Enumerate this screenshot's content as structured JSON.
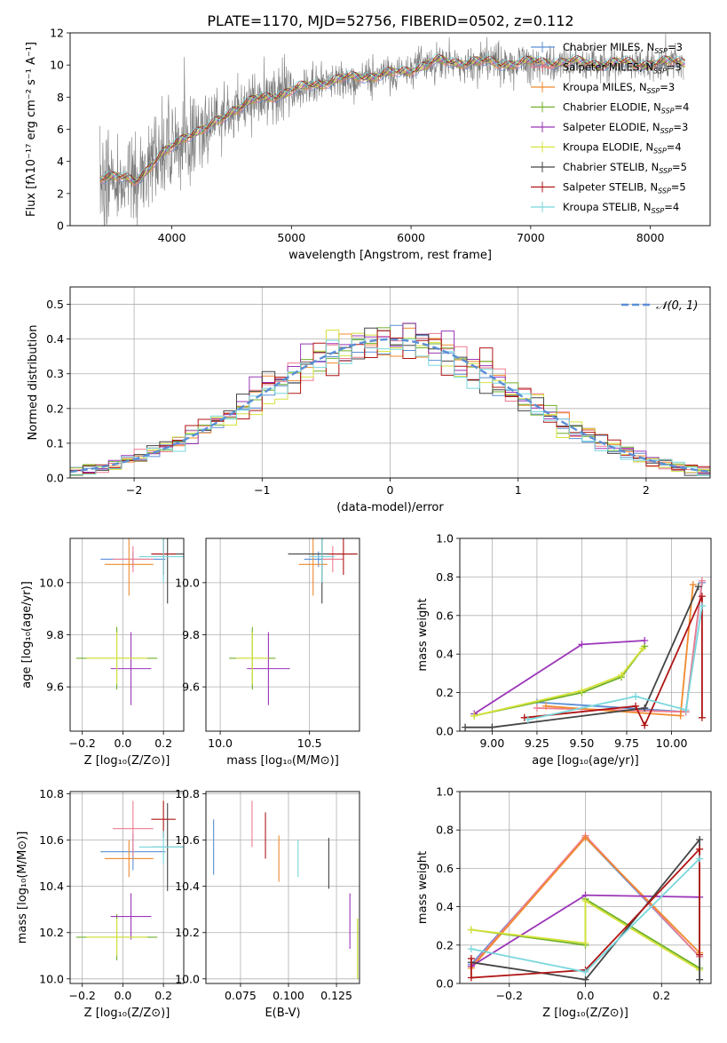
{
  "figure_title": "PLATE=1170, MJD=52756, FIBERID=0502, z=0.112",
  "legend": {
    "spectrum_models": [
      {
        "label": "Chabrier MILES, N",
        "sub": "SSP",
        "tail": "=3",
        "color": "#5b8fd6"
      },
      {
        "label": "Salpeter MILES, N",
        "sub": "SSP",
        "tail": "=3",
        "color": "#ee7b8f"
      },
      {
        "label": "Kroupa MILES, N",
        "sub": "SSP",
        "tail": "=3",
        "color": "#f08a2e"
      },
      {
        "label": "Chabrier ELODIE, N",
        "sub": "SSP",
        "tail": "=4",
        "color": "#6fb02a"
      },
      {
        "label": "Salpeter ELODIE, N",
        "sub": "SSP",
        "tail": "=3",
        "color": "#9b35b8"
      },
      {
        "label": "Kroupa ELODIE, N",
        "sub": "SSP",
        "tail": "=4",
        "color": "#d6e23a"
      },
      {
        "label": "Chabrier STELIB, N",
        "sub": "SSP",
        "tail": "=5",
        "color": "#444444"
      },
      {
        "label": "Salpeter STELIB, N",
        "sub": "SSP",
        "tail": "=5",
        "color": "#b01515"
      },
      {
        "label": "Kroupa STELIB, N",
        "sub": "SSP",
        "tail": "=4",
        "color": "#78d7dc"
      }
    ],
    "gaussian": "𝒩(0, 1)"
  },
  "chart_data": [
    {
      "id": "spectrum",
      "type": "line",
      "xlabel": "wavelength [Angstrom, rest frame]",
      "ylabel": "Flux [fλ10⁻¹⁷ erg cm⁻² s⁻¹ A⁻¹]",
      "xlim": [
        3150,
        8500
      ],
      "ylim": [
        0,
        12
      ],
      "xticks": [
        4000,
        5000,
        6000,
        7000,
        8000
      ],
      "yticks": [
        0,
        2,
        4,
        6,
        8,
        10,
        12
      ],
      "model_x_range": [
        3400,
        8290
      ],
      "data_x_range": [
        3400,
        8280
      ],
      "continuum_anchors": [
        [
          3400,
          3.0
        ],
        [
          3700,
          2.9
        ],
        [
          3900,
          4.2
        ],
        [
          4100,
          5.6
        ],
        [
          4300,
          6.0
        ],
        [
          4500,
          7.2
        ],
        [
          4700,
          7.8
        ],
        [
          5000,
          8.4
        ],
        [
          5300,
          9.0
        ],
        [
          5600,
          9.3
        ],
        [
          5900,
          9.5
        ],
        [
          6200,
          10.2
        ],
        [
          6500,
          10.2
        ],
        [
          6800,
          10.1
        ],
        [
          7200,
          10.2
        ],
        [
          7600,
          10.1
        ],
        [
          8000,
          10.1
        ],
        [
          8280,
          10.2
        ]
      ]
    },
    {
      "id": "residuals",
      "type": "step",
      "xlabel": "(data-model)/error",
      "ylabel": "Normed distribution",
      "xlim": [
        -2.5,
        2.5
      ],
      "ylim": [
        0,
        0.55
      ],
      "xticks": [
        -2,
        -1,
        0,
        1,
        2
      ],
      "xtick_labels": [
        "−2",
        "−1",
        "0",
        "1",
        "2"
      ],
      "yticks": [
        0.0,
        0.1,
        0.2,
        0.3,
        0.4,
        0.5
      ],
      "ytick_labels": [
        "0.0",
        "0.1",
        "0.2",
        "0.3",
        "0.4",
        "0.5"
      ],
      "bin_width": 0.1,
      "bins_from": -2.5
    },
    {
      "id": "age_vs_Z",
      "type": "errorbar",
      "xlabel": "Z [log₁₀(Z/Z⊙)]",
      "ylabel": "age [log₁₀(age/yr)]",
      "xlim": [
        -0.26,
        0.3
      ],
      "ylim": [
        9.43,
        10.17
      ],
      "xticks": [
        -0.2,
        0.0,
        0.2
      ],
      "xtick_labels": [
        "−0.2",
        "0.0",
        "0.2"
      ],
      "yticks": [
        9.6,
        9.8,
        10.0
      ],
      "ytick_labels": [
        "9.6",
        "9.8",
        "10.0"
      ],
      "points": [
        {
          "model": 0,
          "x": 0.05,
          "y": 10.09,
          "xerr": 0.16,
          "yerr": 0.03
        },
        {
          "model": 1,
          "x": 0.05,
          "y": 10.09,
          "xerr": 0.1,
          "yerr": 0.05
        },
        {
          "model": 2,
          "x": 0.03,
          "y": 10.07,
          "xerr": 0.12,
          "yerr": 0.12
        },
        {
          "model": 3,
          "x": -0.03,
          "y": 9.71,
          "xerr": 0.2,
          "yerr": 0.12
        },
        {
          "model": 4,
          "x": 0.04,
          "y": 9.67,
          "xerr": 0.1,
          "yerr": 0.14
        },
        {
          "model": 5,
          "x": -0.03,
          "y": 9.71,
          "xerr": 0.15,
          "yerr": 0.1
        },
        {
          "model": 6,
          "x": 0.22,
          "y": 10.11,
          "xerr": 0.08,
          "yerr": 0.19
        },
        {
          "model": 7,
          "x": 0.2,
          "y": 10.11,
          "xerr": 0.06,
          "yerr": 0.08
        },
        {
          "model": 8,
          "x": 0.2,
          "y": 10.1,
          "xerr": 0.12,
          "yerr": 0.1
        }
      ]
    },
    {
      "id": "age_vs_mass",
      "type": "errorbar",
      "xlabel": "mass [log₁₀(M/M⊙)]",
      "ylabel": "",
      "xlim": [
        9.92,
        10.78
      ],
      "ylim": [
        9.43,
        10.17
      ],
      "xticks": [
        10.0,
        10.5
      ],
      "xtick_labels": [
        "10.0",
        "10.5"
      ],
      "yticks": [
        9.6,
        9.8,
        10.0
      ],
      "ytick_labels": [
        "9.6",
        "9.8",
        "10.0"
      ],
      "points": [
        {
          "model": 0,
          "x": 10.55,
          "y": 10.09,
          "xerr": 0.08,
          "yerr": 0.03
        },
        {
          "model": 1,
          "x": 10.63,
          "y": 10.09,
          "xerr": 0.06,
          "yerr": 0.05
        },
        {
          "model": 2,
          "x": 10.52,
          "y": 10.07,
          "xerr": 0.08,
          "yerr": 0.12
        },
        {
          "model": 3,
          "x": 10.18,
          "y": 9.71,
          "xerr": 0.13,
          "yerr": 0.12
        },
        {
          "model": 4,
          "x": 10.27,
          "y": 9.67,
          "xerr": 0.12,
          "yerr": 0.14
        },
        {
          "model": 5,
          "x": 10.18,
          "y": 9.71,
          "xerr": 0.09,
          "yerr": 0.1
        },
        {
          "model": 6,
          "x": 10.57,
          "y": 10.11,
          "xerr": 0.19,
          "yerr": 0.19
        },
        {
          "model": 7,
          "x": 10.69,
          "y": 10.11,
          "xerr": 0.08,
          "yerr": 0.08
        },
        {
          "model": 8,
          "x": 10.57,
          "y": 10.1,
          "xerr": 0.07,
          "yerr": 0.1
        }
      ]
    },
    {
      "id": "weight_vs_age",
      "type": "line",
      "xlabel": "age [log₁₀(age/yr)]",
      "ylabel": "mass weight",
      "xlim": [
        8.82,
        10.22
      ],
      "ylim": [
        0,
        1
      ],
      "xticks": [
        9.0,
        9.25,
        9.5,
        9.75,
        10.0
      ],
      "xtick_labels": [
        "9.00",
        "9.25",
        "9.50",
        "9.75",
        "10.00"
      ],
      "yticks": [
        0.0,
        0.2,
        0.4,
        0.6,
        0.8,
        1.0
      ],
      "ytick_labels": [
        "0.0",
        "0.2",
        "0.4",
        "0.6",
        "0.8",
        "1.0"
      ],
      "series": [
        {
          "model": 0,
          "points": [
            [
              9.25,
              0.15
            ],
            [
              10.08,
              0.1
            ],
            [
              10.17,
              0.77
            ]
          ]
        },
        {
          "model": 1,
          "points": [
            [
              9.25,
              0.12
            ],
            [
              10.08,
              0.1
            ],
            [
              10.17,
              0.78
            ]
          ]
        },
        {
          "model": 2,
          "points": [
            [
              9.3,
              0.13
            ],
            [
              10.05,
              0.08
            ],
            [
              10.12,
              0.76
            ]
          ]
        },
        {
          "model": 3,
          "points": [
            [
              8.9,
              0.08
            ],
            [
              9.5,
              0.2
            ],
            [
              9.72,
              0.28
            ],
            [
              9.85,
              0.44
            ]
          ]
        },
        {
          "model": 4,
          "points": [
            [
              8.9,
              0.09
            ],
            [
              9.5,
              0.45
            ],
            [
              9.85,
              0.47
            ]
          ]
        },
        {
          "model": 5,
          "points": [
            [
              8.9,
              0.08
            ],
            [
              9.5,
              0.21
            ],
            [
              9.72,
              0.29
            ],
            [
              9.84,
              0.43
            ]
          ]
        },
        {
          "model": 6,
          "points": [
            [
              8.85,
              0.02
            ],
            [
              9.0,
              0.02
            ],
            [
              9.85,
              0.12
            ],
            [
              10.15,
              0.75
            ]
          ]
        },
        {
          "model": 7,
          "points": [
            [
              9.18,
              0.07
            ],
            [
              9.8,
              0.13
            ],
            [
              9.85,
              0.03
            ],
            [
              10.17,
              0.7
            ],
            [
              10.17,
              0.07
            ]
          ]
        },
        {
          "model": 8,
          "points": [
            [
              9.2,
              0.06
            ],
            [
              9.8,
              0.18
            ],
            [
              10.08,
              0.11
            ],
            [
              10.17,
              0.65
            ]
          ]
        }
      ]
    },
    {
      "id": "mass_vs_Z",
      "type": "errorbar",
      "xlabel": "Z [log₁₀(Z/Z⊙)]",
      "ylabel": "mass [log₁₀(M/M⊙)]",
      "xlim": [
        -0.26,
        0.3
      ],
      "ylim": [
        9.98,
        10.81
      ],
      "xticks": [
        -0.2,
        0.0,
        0.2
      ],
      "xtick_labels": [
        "−0.2",
        "0.0",
        "0.2"
      ],
      "yticks": [
        10.0,
        10.2,
        10.4,
        10.6,
        10.8
      ],
      "ytick_labels": [
        "10.0",
        "10.2",
        "10.4",
        "10.6",
        "10.8"
      ],
      "points": [
        {
          "model": 0,
          "x": 0.05,
          "y": 10.55,
          "xerr": 0.16,
          "yerr": 0.08
        },
        {
          "model": 1,
          "x": 0.05,
          "y": 10.65,
          "xerr": 0.1,
          "yerr": 0.12
        },
        {
          "model": 2,
          "x": 0.03,
          "y": 10.52,
          "xerr": 0.12,
          "yerr": 0.08
        },
        {
          "model": 3,
          "x": -0.03,
          "y": 10.18,
          "xerr": 0.2,
          "yerr": 0.1
        },
        {
          "model": 4,
          "x": 0.04,
          "y": 10.27,
          "xerr": 0.1,
          "yerr": 0.1
        },
        {
          "model": 5,
          "x": -0.03,
          "y": 10.18,
          "xerr": 0.15,
          "yerr": 0.08
        },
        {
          "model": 6,
          "x": 0.22,
          "y": 10.57,
          "xerr": 0.08,
          "yerr": 0.19
        },
        {
          "model": 7,
          "x": 0.2,
          "y": 10.69,
          "xerr": 0.06,
          "yerr": 0.08
        },
        {
          "model": 8,
          "x": 0.2,
          "y": 10.57,
          "xerr": 0.12,
          "yerr": 0.07
        }
      ]
    },
    {
      "id": "mass_vs_ebv",
      "type": "errorbar",
      "xlabel": "E(B-V)",
      "ylabel": "",
      "xlim": [
        0.057,
        0.137
      ],
      "ylim": [
        9.98,
        10.81
      ],
      "xticks": [
        0.075,
        0.1,
        0.125
      ],
      "xtick_labels": [
        "0.075",
        "0.100",
        "0.125"
      ],
      "yticks": [
        10.0,
        10.2,
        10.4,
        10.6,
        10.8
      ],
      "ytick_labels": [
        "10.0",
        "10.2",
        "10.4",
        "10.6",
        "10.8"
      ],
      "points": [
        {
          "model": 0,
          "x": 0.061,
          "y": 10.57,
          "xerr": 0,
          "yerr": 0.12
        },
        {
          "model": 1,
          "x": 0.081,
          "y": 10.67,
          "xerr": 0,
          "yerr": 0.1
        },
        {
          "model": 2,
          "x": 0.095,
          "y": 10.52,
          "xerr": 0,
          "yerr": 0.1
        },
        {
          "model": 3,
          "x": 0.136,
          "y": 10.13,
          "xerr": 0,
          "yerr": 0.13
        },
        {
          "model": 4,
          "x": 0.132,
          "y": 10.25,
          "xerr": 0,
          "yerr": 0.12
        },
        {
          "model": 5,
          "x": 0.136,
          "y": 10.13,
          "xerr": 0,
          "yerr": 0.13
        },
        {
          "model": 6,
          "x": 0.121,
          "y": 10.5,
          "xerr": 0,
          "yerr": 0.11
        },
        {
          "model": 7,
          "x": 0.088,
          "y": 10.62,
          "xerr": 0,
          "yerr": 0.1
        },
        {
          "model": 8,
          "x": 0.105,
          "y": 10.52,
          "xerr": 0,
          "yerr": 0.08
        }
      ]
    },
    {
      "id": "weight_vs_Z",
      "type": "line",
      "xlabel": "Z [log₁₀(Z/Z⊙)]",
      "ylabel": "mass weight",
      "xlim": [
        -0.33,
        0.33
      ],
      "ylim": [
        0,
        1
      ],
      "xticks": [
        -0.2,
        0.0,
        0.2
      ],
      "xtick_labels": [
        "−0.2",
        "0.0",
        "0.2"
      ],
      "yticks": [
        0.0,
        0.2,
        0.4,
        0.6,
        0.8,
        1.0
      ],
      "ytick_labels": [
        "0.0",
        "0.2",
        "0.4",
        "0.6",
        "0.8",
        "1.0"
      ],
      "series": [
        {
          "model": 0,
          "points": [
            [
              -0.3,
              0.1
            ],
            [
              0.0,
              0.76
            ],
            [
              0.3,
              0.14
            ]
          ]
        },
        {
          "model": 1,
          "points": [
            [
              -0.3,
              0.09
            ],
            [
              0.0,
              0.77
            ],
            [
              0.3,
              0.14
            ]
          ]
        },
        {
          "model": 2,
          "points": [
            [
              -0.3,
              0.08
            ],
            [
              0.0,
              0.76
            ],
            [
              0.3,
              0.16
            ]
          ]
        },
        {
          "model": 3,
          "points": [
            [
              -0.3,
              0.28
            ],
            [
              0.0,
              0.2
            ],
            [
              0.0,
              0.44
            ],
            [
              0.3,
              0.08
            ]
          ]
        },
        {
          "model": 4,
          "points": [
            [
              -0.3,
              0.09
            ],
            [
              0.0,
              0.46
            ],
            [
              0.3,
              0.45
            ]
          ]
        },
        {
          "model": 5,
          "points": [
            [
              -0.3,
              0.28
            ],
            [
              0.0,
              0.21
            ],
            [
              0.0,
              0.43
            ],
            [
              0.3,
              0.07
            ]
          ]
        },
        {
          "model": 6,
          "points": [
            [
              -0.3,
              0.11
            ],
            [
              0.0,
              0.02
            ],
            [
              0.3,
              0.75
            ],
            [
              0.3,
              0.02
            ]
          ]
        },
        {
          "model": 7,
          "points": [
            [
              -0.3,
              0.13
            ],
            [
              -0.3,
              0.03
            ],
            [
              0.0,
              0.07
            ],
            [
              0.3,
              0.7
            ],
            [
              0.3,
              0.15
            ]
          ]
        },
        {
          "model": 8,
          "points": [
            [
              -0.3,
              0.18
            ],
            [
              0.0,
              0.06
            ],
            [
              0.3,
              0.65
            ]
          ]
        }
      ]
    }
  ]
}
